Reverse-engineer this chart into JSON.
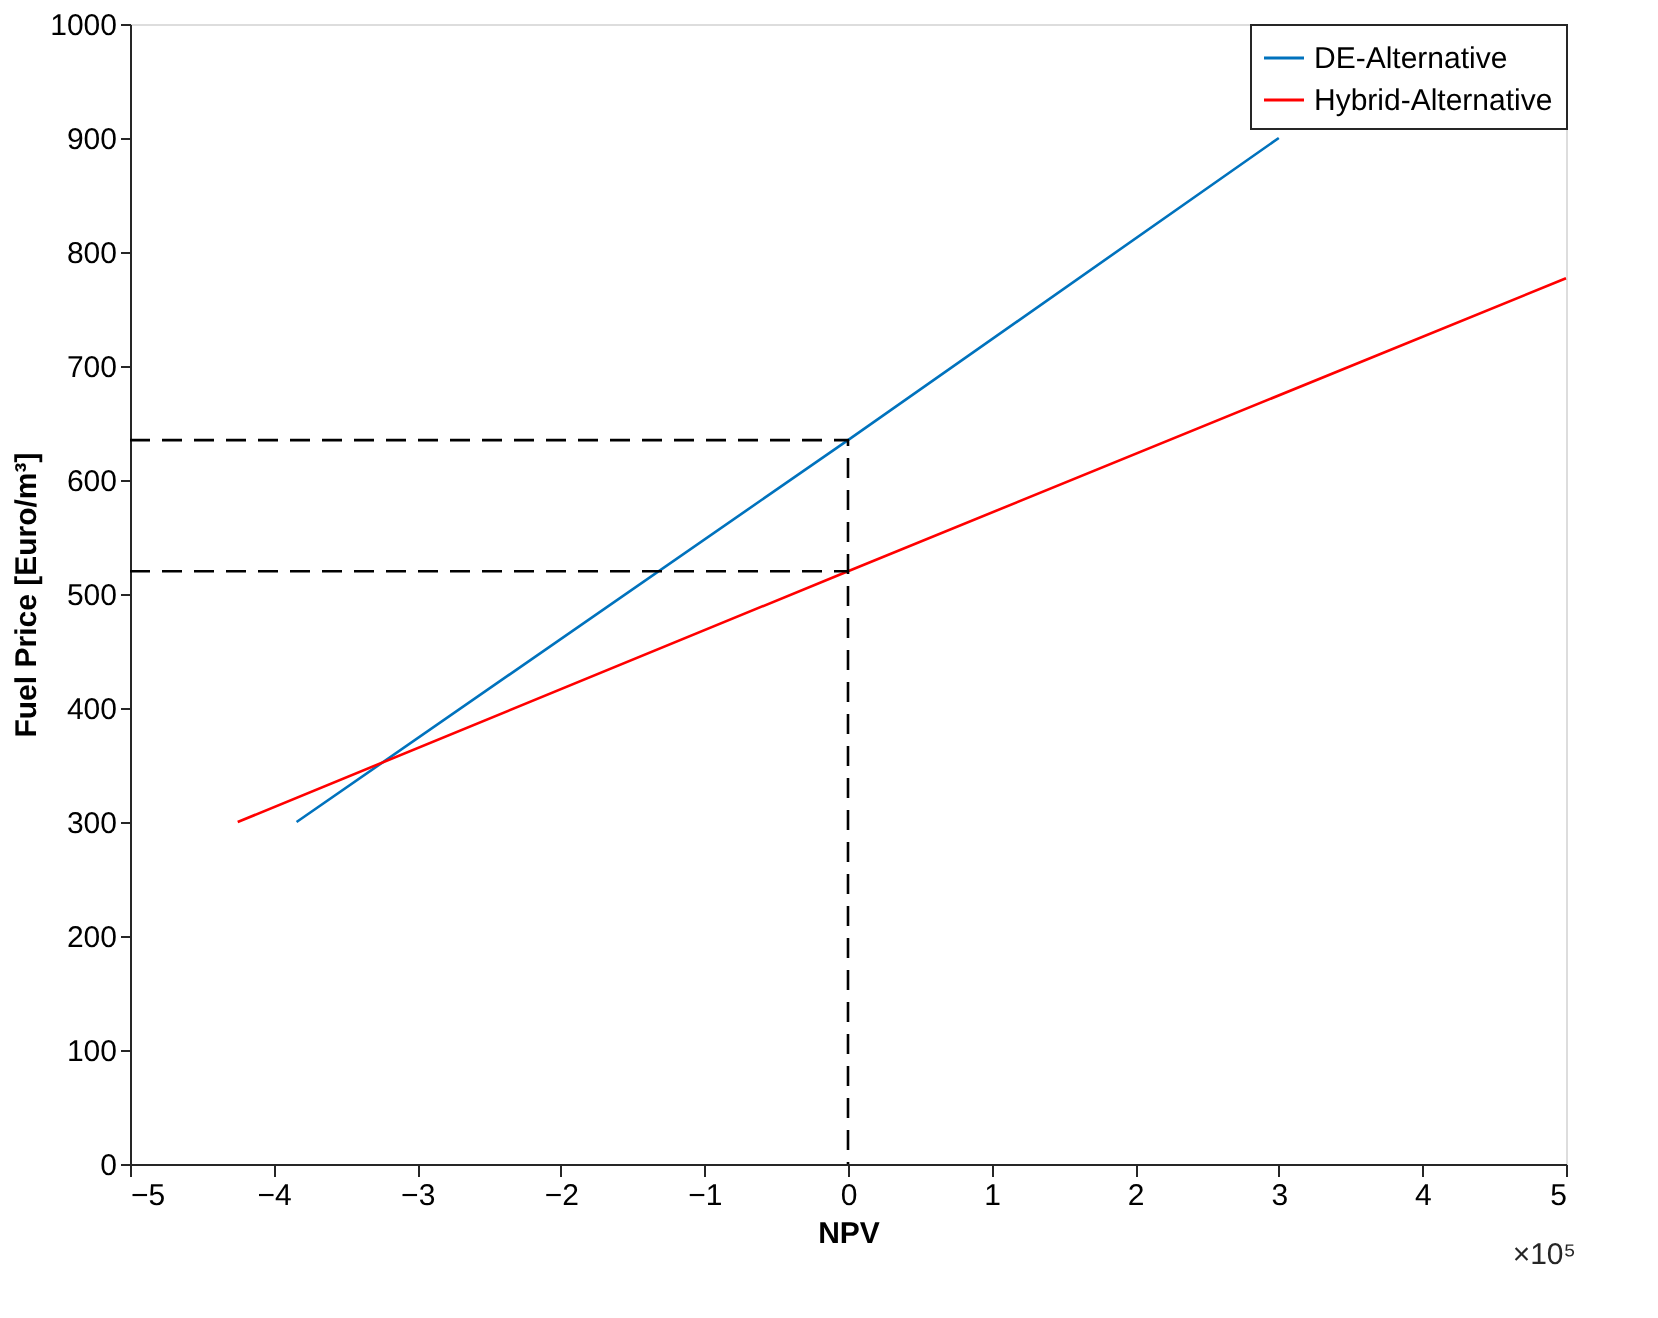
{
  "chart_data": {
    "type": "line",
    "xlabel": "NPV",
    "ylabel": "Fuel Price [Euro/m³]",
    "xlim": [
      -5,
      5
    ],
    "ylim": [
      0,
      1000
    ],
    "xticks": [
      -5,
      -4,
      -3,
      -2,
      -1,
      0,
      1,
      2,
      3,
      4,
      5
    ],
    "yticks": [
      0,
      100,
      200,
      300,
      400,
      500,
      600,
      700,
      800,
      900,
      1000
    ],
    "grid": false,
    "legend": "top right",
    "marker": "none",
    "annotations": [
      "×10⁵"
    ],
    "series": [
      {
        "name": "DE-Alternative",
        "color": "#0072bd",
        "x": [
          -3.84,
          0,
          3.0
        ],
        "values": [
          300,
          635,
          900
        ],
        "line_style": "solid"
      },
      {
        "name": "Hybrid-Alternative",
        "color": "#ff0000",
        "x": [
          -4.25,
          0,
          5
        ],
        "values": [
          300,
          520,
          777
        ],
        "line_style": "solid"
      },
      {
        "color": "#000000",
        "x": [
          -5,
          0,
          0
        ],
        "values": [
          635,
          635,
          0
        ],
        "line_style": "dashed"
      },
      {
        "color": "#000000",
        "x": [
          -5,
          0
        ],
        "values": [
          520,
          520
        ],
        "line_style": "dashed"
      }
    ]
  }
}
